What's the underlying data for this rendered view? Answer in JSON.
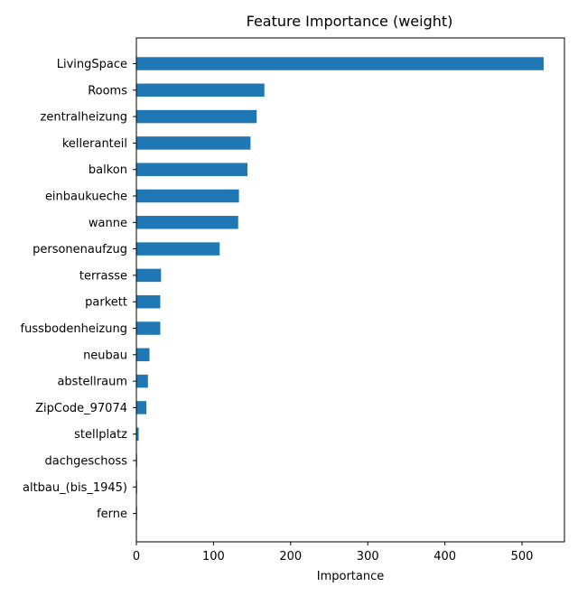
{
  "chart_data": {
    "type": "bar",
    "orientation": "horizontal",
    "title": "Feature Importance (weight)",
    "xlabel": "Importance",
    "ylabel": "",
    "categories": [
      "LivingSpace",
      "Rooms",
      "zentralheizung",
      "kelleranteil",
      "balkon",
      "einbaukueche",
      "wanne",
      "personenaufzug",
      "terrasse",
      "parkett",
      "fussbodenheizung",
      "neubau",
      "abstellraum",
      "ZipCode_97074",
      "stellplatz",
      "dachgeschoss",
      "altbau_(bis_1945)",
      "ferne"
    ],
    "values": [
      528,
      166,
      156,
      148,
      144,
      133,
      132,
      108,
      32,
      31,
      31,
      17,
      15,
      13,
      3,
      1,
      1,
      1
    ],
    "xlim": [
      0,
      555
    ],
    "xticks": [
      0,
      100,
      200,
      300,
      400,
      500
    ],
    "bar_color": "#1f77b4",
    "grid": false
  }
}
